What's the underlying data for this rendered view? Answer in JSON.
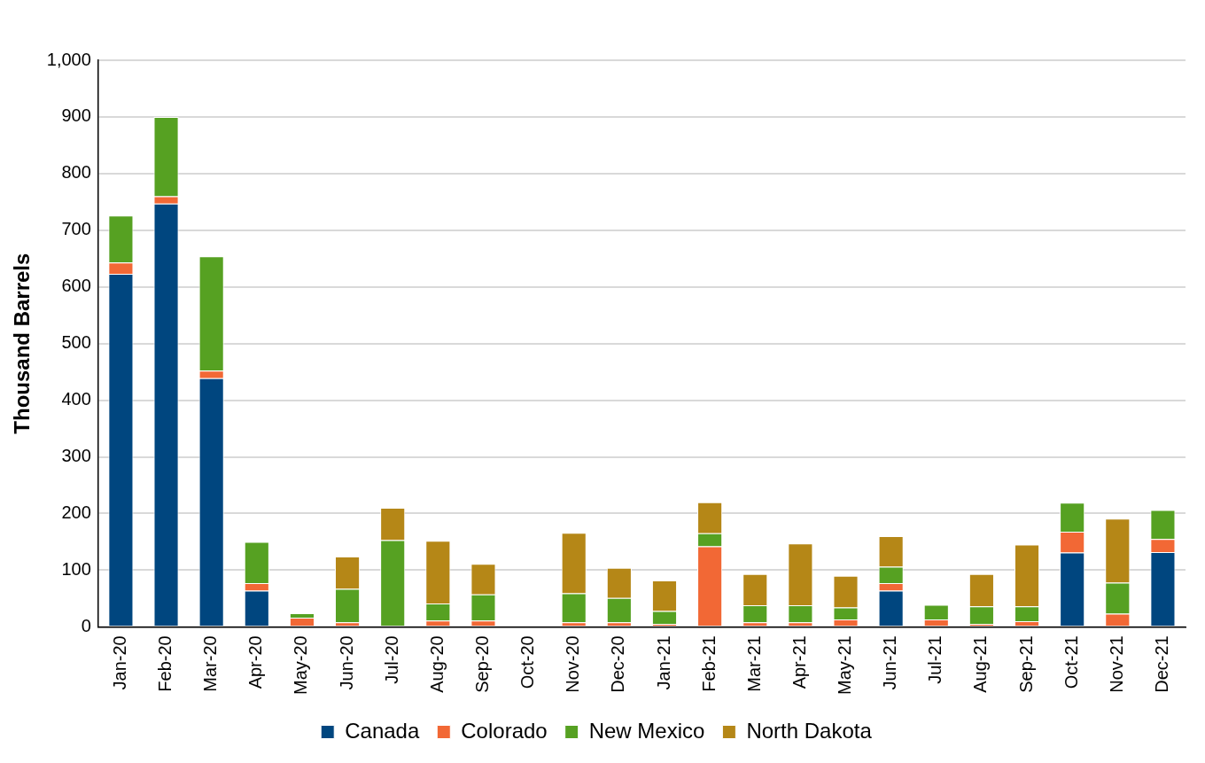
{
  "chart_data": {
    "type": "bar",
    "ylabel": "Thousand Barrels",
    "stacked": true,
    "grid": "y",
    "legend": "bottom",
    "categories": [
      "Jan-20",
      "Feb-20",
      "Mar-20",
      "Apr-20",
      "May-20",
      "Jun-20",
      "Jul-20",
      "Aug-20",
      "Sep-20",
      "Oct-20",
      "Nov-20",
      "Dec-20",
      "Jan-21",
      "Feb-21",
      "Mar-21",
      "Apr-21",
      "May-21",
      "Jun-21",
      "Jul-21",
      "Aug-21",
      "Sep-21",
      "Oct-21",
      "Nov-21",
      "Dec-21"
    ],
    "ylim": [
      0,
      1000
    ],
    "yticks": [
      0,
      100,
      200,
      300,
      400,
      500,
      600,
      700,
      800,
      900,
      {
        "value": 1000,
        "label": "1,000"
      }
    ],
    "series": [
      {
        "name": "Canada",
        "color": "#00467f",
        "values": [
          623,
          747,
          439,
          64,
          0,
          0,
          0,
          0,
          0,
          0,
          0,
          0,
          0,
          0,
          0,
          0,
          0,
          64,
          0,
          0,
          0,
          131,
          0,
          132
        ]
      },
      {
        "name": "Colorado",
        "color": "#f26835",
        "values": [
          20,
          13,
          13,
          13,
          16,
          8,
          0,
          11,
          11,
          0,
          8,
          8,
          5,
          142,
          8,
          8,
          13,
          13,
          13,
          5,
          10,
          37,
          23,
          23
        ]
      },
      {
        "name": "New Mexico",
        "color": "#56a122",
        "values": [
          83,
          140,
          202,
          73,
          8,
          59,
          153,
          30,
          46,
          0,
          51,
          43,
          23,
          23,
          30,
          30,
          21,
          29,
          26,
          31,
          26,
          51,
          55,
          51
        ]
      },
      {
        "name": "North Dakota",
        "color": "#b58717",
        "values": [
          0,
          0,
          0,
          0,
          0,
          57,
          57,
          111,
          54,
          0,
          107,
          53,
          54,
          55,
          55,
          109,
          56,
          54,
          0,
          57,
          109,
          0,
          113,
          0
        ]
      }
    ]
  }
}
